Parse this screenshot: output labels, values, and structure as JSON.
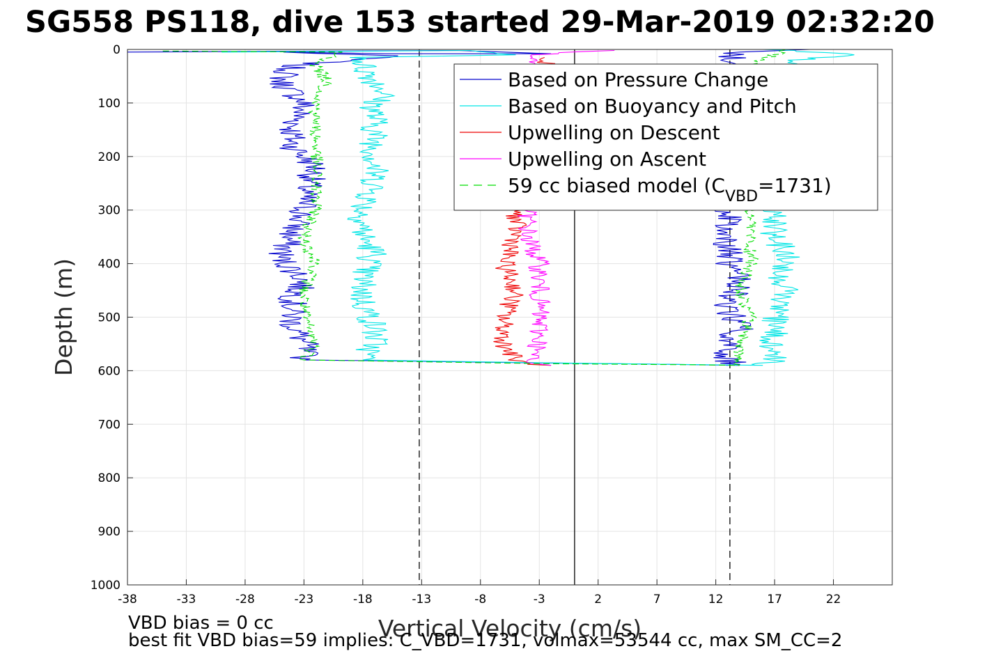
{
  "chart_data": {
    "type": "line",
    "title": "SG558 PS118, dive 153 started 29-Mar-2019 02:32:20",
    "xlabel": "Vertical Velocity (cm/s)",
    "ylabel": "Depth (m)",
    "xlim": [
      -38,
      27
    ],
    "ylim": [
      0,
      1000
    ],
    "y_reversed": true,
    "xticks": [
      -38,
      -33,
      -28,
      -23,
      -18,
      -13,
      -8,
      -3,
      2,
      7,
      12,
      17,
      22
    ],
    "yticks": [
      0,
      100,
      200,
      300,
      400,
      500,
      600,
      700,
      800,
      900,
      1000
    ],
    "grid": true,
    "legend_position": "top-right",
    "reference_lines": [
      {
        "x": -13.2,
        "style": "dashed",
        "color": "#000000"
      },
      {
        "x": 0,
        "style": "solid",
        "color": "#000000"
      },
      {
        "x": 13.2,
        "style": "dashed",
        "color": "#000000"
      }
    ],
    "legend": [
      {
        "label": "Based on Pressure Change",
        "color": "#0000cc",
        "style": "solid"
      },
      {
        "label": "Based on Buoyancy and Pitch",
        "color": "#00e5e5",
        "style": "solid"
      },
      {
        "label": "Upwelling on Descent",
        "color": "#ee0000",
        "style": "solid"
      },
      {
        "label": "Upwelling on Ascent",
        "color": "#ff00ff",
        "style": "solid"
      },
      {
        "label": "59 cc biased model (C",
        "label_sub": "VBD",
        "label_end": "=1731)",
        "color": "#00dd00",
        "style": "dashed"
      }
    ],
    "series": [
      {
        "name": "Based on Pressure Change",
        "color": "#0000cc",
        "descent": [
          [
            -38,
            5
          ],
          [
            -10,
            2
          ],
          [
            -2,
            8
          ],
          [
            -16,
            8
          ],
          [
            -25,
            5
          ],
          [
            -15,
            12
          ],
          [
            -17,
            15
          ],
          [
            -24,
            30
          ],
          [
            -25,
            60
          ],
          [
            -23,
            100
          ],
          [
            -24,
            150
          ],
          [
            -24,
            180
          ],
          [
            -22,
            220
          ],
          [
            -23,
            270
          ],
          [
            -23,
            300
          ],
          [
            -24,
            340
          ],
          [
            -25,
            390
          ],
          [
            -23,
            430
          ],
          [
            -24,
            470
          ],
          [
            -24,
            510
          ],
          [
            -23,
            550
          ],
          [
            -23,
            580
          ],
          [
            -14,
            582
          ],
          [
            -8,
            584
          ],
          [
            -1,
            586
          ],
          [
            8,
            588
          ],
          [
            14,
            590
          ]
        ],
        "ascent": [
          [
            14,
            590
          ],
          [
            13,
            580
          ],
          [
            13,
            550
          ],
          [
            14,
            520
          ],
          [
            13,
            480
          ],
          [
            14,
            440
          ],
          [
            13,
            400
          ],
          [
            13,
            360
          ],
          [
            13,
            320
          ],
          [
            13,
            300
          ],
          [
            13,
            200
          ],
          [
            13,
            100
          ],
          [
            14,
            40
          ],
          [
            13,
            20
          ],
          [
            14,
            5
          ],
          [
            20,
            0
          ]
        ]
      },
      {
        "name": "Based on Buoyancy and Pitch",
        "color": "#00e5e5",
        "descent": [
          [
            -30,
            5
          ],
          [
            -10,
            2
          ],
          [
            -5,
            10
          ],
          [
            -18,
            15
          ],
          [
            -18,
            30
          ],
          [
            -17,
            60
          ],
          [
            -16,
            80
          ],
          [
            -17,
            100
          ],
          [
            -17,
            150
          ],
          [
            -17,
            200
          ],
          [
            -17,
            255
          ],
          [
            -18,
            300
          ],
          [
            -18,
            350
          ],
          [
            -17,
            380
          ],
          [
            -18,
            420
          ],
          [
            -18,
            470
          ],
          [
            -17,
            520
          ],
          [
            -17,
            550
          ],
          [
            -18,
            580
          ],
          [
            -12,
            582
          ],
          [
            -3,
            585
          ],
          [
            8,
            588
          ],
          [
            16,
            590
          ]
        ],
        "ascent": [
          [
            16,
            590
          ],
          [
            17,
            580
          ],
          [
            17,
            550
          ],
          [
            17,
            500
          ],
          [
            18,
            460
          ],
          [
            17,
            420
          ],
          [
            18,
            390
          ],
          [
            17,
            350
          ],
          [
            17,
            320
          ],
          [
            17,
            300
          ],
          [
            17,
            200
          ],
          [
            18,
            60
          ],
          [
            19,
            20
          ],
          [
            24,
            10
          ],
          [
            16,
            0
          ]
        ]
      },
      {
        "name": "Upwelling on Descent",
        "color": "#ee0000",
        "points": [
          [
            -3,
            15
          ],
          [
            -2,
            40
          ],
          [
            -5,
            300
          ],
          [
            -5,
            350
          ],
          [
            -6,
            400
          ],
          [
            -5,
            450
          ],
          [
            -6,
            500
          ],
          [
            -6,
            550
          ],
          [
            -5,
            580
          ],
          [
            -4,
            588
          ],
          [
            -2,
            590
          ]
        ]
      },
      {
        "name": "Upwelling on Ascent",
        "color": "#ff00ff",
        "points": [
          [
            3,
            2
          ],
          [
            -4,
            10
          ],
          [
            -4,
            300
          ],
          [
            -4,
            350
          ],
          [
            -3,
            400
          ],
          [
            -3,
            450
          ],
          [
            -3,
            500
          ],
          [
            -3,
            550
          ],
          [
            -4,
            585
          ],
          [
            -2,
            590
          ]
        ]
      },
      {
        "name": "59 cc biased model (CVBD=1731)",
        "color": "#00dd00",
        "dashed": true,
        "descent": [
          [
            -35,
            3
          ],
          [
            -20,
            5
          ],
          [
            -22,
            30
          ],
          [
            -21,
            60
          ],
          [
            -22,
            100
          ],
          [
            -22,
            150
          ],
          [
            -22,
            200
          ],
          [
            -22,
            250
          ],
          [
            -22,
            300
          ],
          [
            -23,
            350
          ],
          [
            -22,
            400
          ],
          [
            -23,
            450
          ],
          [
            -23,
            500
          ],
          [
            -22,
            550
          ],
          [
            -23,
            580
          ],
          [
            -14,
            583
          ],
          [
            -2,
            587
          ],
          [
            10,
            589
          ],
          [
            14,
            590
          ]
        ],
        "ascent": [
          [
            14,
            590
          ],
          [
            14,
            580
          ],
          [
            14,
            550
          ],
          [
            15,
            500
          ],
          [
            14,
            450
          ],
          [
            15,
            400
          ],
          [
            15,
            350
          ],
          [
            15,
            300
          ],
          [
            15,
            200
          ],
          [
            14,
            100
          ],
          [
            15,
            30
          ],
          [
            18,
            0
          ]
        ]
      }
    ]
  },
  "footer": {
    "line1": "VBD bias = 0 cc",
    "line2": "best fit VBD bias=59 implies: C_VBD=1731, volmax=53544 cc, max SM_CC=2"
  }
}
